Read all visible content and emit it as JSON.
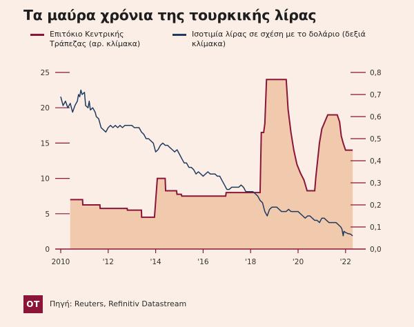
{
  "colors": {
    "background": "#faeee6",
    "rate": "#8a1538",
    "lira": "#1f3a5f",
    "fill": "#f1c9ad",
    "axis": "#8a1538"
  },
  "logo_text": "OT",
  "source": "Πηγή: Reuters, Refinitiv Datastream",
  "chart_data": {
    "type": "line",
    "title": "Τα μαύρα χρόνια της τουρκικής λίρας",
    "x_ticks": [
      "2010",
      "'12",
      "'14",
      "'16",
      "'18",
      "'20",
      "'22"
    ],
    "x_tick_years": [
      2010,
      2012,
      2014,
      2016,
      2018,
      2020,
      2022
    ],
    "x_range": [
      2010,
      2022.5
    ],
    "y_left": {
      "ticks": [
        "0",
        "5",
        "10",
        "15",
        "20",
        "25"
      ],
      "range": [
        0,
        25
      ]
    },
    "y_right": {
      "ticks": [
        "0,0",
        "0,1",
        "0,2",
        "0,3",
        "0,4",
        "0,5",
        "0,6",
        "0,7",
        "0,8"
      ],
      "range": [
        0,
        0.8
      ]
    },
    "series": [
      {
        "name": "Επιτόκιο Κεντρικής Τράπεζας (αρ. κλίμακα)",
        "axis": "left",
        "step": true,
        "filled": true,
        "points": [
          [
            2010.4,
            7.0
          ],
          [
            2010.92,
            7.0
          ],
          [
            2010.93,
            6.25
          ],
          [
            2011.65,
            6.25
          ],
          [
            2011.66,
            5.75
          ],
          [
            2012.8,
            5.75
          ],
          [
            2012.81,
            5.5
          ],
          [
            2013.4,
            5.5
          ],
          [
            2013.41,
            4.5
          ],
          [
            2013.95,
            4.5
          ],
          [
            2014.07,
            10.0
          ],
          [
            2014.4,
            10.0
          ],
          [
            2014.42,
            8.25
          ],
          [
            2014.88,
            8.25
          ],
          [
            2014.9,
            7.75
          ],
          [
            2015.08,
            7.75
          ],
          [
            2015.1,
            7.5
          ],
          [
            2016.95,
            7.5
          ],
          [
            2016.97,
            8.0
          ],
          [
            2018.4,
            8.0
          ],
          [
            2018.45,
            16.5
          ],
          [
            2018.55,
            16.5
          ],
          [
            2018.6,
            17.75
          ],
          [
            2018.67,
            24.0
          ],
          [
            2019.5,
            24.0
          ],
          [
            2019.58,
            19.75
          ],
          [
            2019.7,
            16.5
          ],
          [
            2019.82,
            14.0
          ],
          [
            2019.95,
            12.0
          ],
          [
            2020.1,
            10.75
          ],
          [
            2020.25,
            9.75
          ],
          [
            2020.38,
            8.25
          ],
          [
            2020.7,
            8.25
          ],
          [
            2020.75,
            10.25
          ],
          [
            2020.9,
            15.0
          ],
          [
            2021.0,
            17.0
          ],
          [
            2021.25,
            19.0
          ],
          [
            2021.65,
            19.0
          ],
          [
            2021.75,
            18.0
          ],
          [
            2021.82,
            16.0
          ],
          [
            2021.9,
            15.0
          ],
          [
            2022.0,
            14.0
          ],
          [
            2022.3,
            14.0
          ]
        ]
      },
      {
        "name": "Ισοτιμία λίρας σε σχέση με το δολάριο (δεξιά κλίμακα)",
        "axis": "right",
        "step": false,
        "filled": false,
        "points": [
          [
            2010.0,
            0.69
          ],
          [
            2010.1,
            0.65
          ],
          [
            2010.2,
            0.67
          ],
          [
            2010.3,
            0.64
          ],
          [
            2010.4,
            0.66
          ],
          [
            2010.5,
            0.62
          ],
          [
            2010.6,
            0.65
          ],
          [
            2010.7,
            0.67
          ],
          [
            2010.75,
            0.7
          ],
          [
            2010.8,
            0.69
          ],
          [
            2010.85,
            0.72
          ],
          [
            2010.9,
            0.7
          ],
          [
            2011.0,
            0.71
          ],
          [
            2011.05,
            0.65
          ],
          [
            2011.15,
            0.64
          ],
          [
            2011.2,
            0.67
          ],
          [
            2011.25,
            0.63
          ],
          [
            2011.35,
            0.64
          ],
          [
            2011.45,
            0.62
          ],
          [
            2011.5,
            0.6
          ],
          [
            2011.6,
            0.59
          ],
          [
            2011.7,
            0.55
          ],
          [
            2011.8,
            0.54
          ],
          [
            2011.9,
            0.53
          ],
          [
            2012.0,
            0.55
          ],
          [
            2012.1,
            0.56
          ],
          [
            2012.2,
            0.55
          ],
          [
            2012.3,
            0.56
          ],
          [
            2012.4,
            0.55
          ],
          [
            2012.5,
            0.56
          ],
          [
            2012.6,
            0.55
          ],
          [
            2012.7,
            0.56
          ],
          [
            2012.8,
            0.56
          ],
          [
            2012.9,
            0.56
          ],
          [
            2013.0,
            0.56
          ],
          [
            2013.1,
            0.55
          ],
          [
            2013.2,
            0.55
          ],
          [
            2013.3,
            0.55
          ],
          [
            2013.4,
            0.53
          ],
          [
            2013.5,
            0.52
          ],
          [
            2013.6,
            0.5
          ],
          [
            2013.7,
            0.5
          ],
          [
            2013.8,
            0.49
          ],
          [
            2013.9,
            0.48
          ],
          [
            2014.0,
            0.44
          ],
          [
            2014.1,
            0.45
          ],
          [
            2014.2,
            0.47
          ],
          [
            2014.3,
            0.48
          ],
          [
            2014.4,
            0.47
          ],
          [
            2014.5,
            0.47
          ],
          [
            2014.6,
            0.46
          ],
          [
            2014.7,
            0.45
          ],
          [
            2014.8,
            0.44
          ],
          [
            2014.9,
            0.45
          ],
          [
            2015.0,
            0.43
          ],
          [
            2015.1,
            0.41
          ],
          [
            2015.2,
            0.39
          ],
          [
            2015.3,
            0.39
          ],
          [
            2015.4,
            0.37
          ],
          [
            2015.5,
            0.37
          ],
          [
            2015.6,
            0.36
          ],
          [
            2015.7,
            0.34
          ],
          [
            2015.8,
            0.35
          ],
          [
            2015.9,
            0.34
          ],
          [
            2016.0,
            0.33
          ],
          [
            2016.1,
            0.34
          ],
          [
            2016.2,
            0.35
          ],
          [
            2016.3,
            0.34
          ],
          [
            2016.4,
            0.34
          ],
          [
            2016.5,
            0.34
          ],
          [
            2016.6,
            0.33
          ],
          [
            2016.7,
            0.33
          ],
          [
            2016.8,
            0.31
          ],
          [
            2016.9,
            0.29
          ],
          [
            2017.0,
            0.27
          ],
          [
            2017.1,
            0.27
          ],
          [
            2017.2,
            0.28
          ],
          [
            2017.3,
            0.28
          ],
          [
            2017.4,
            0.28
          ],
          [
            2017.5,
            0.28
          ],
          [
            2017.6,
            0.29
          ],
          [
            2017.7,
            0.28
          ],
          [
            2017.8,
            0.26
          ],
          [
            2017.9,
            0.26
          ],
          [
            2018.0,
            0.26
          ],
          [
            2018.1,
            0.26
          ],
          [
            2018.2,
            0.25
          ],
          [
            2018.3,
            0.24
          ],
          [
            2018.4,
            0.22
          ],
          [
            2018.5,
            0.21
          ],
          [
            2018.6,
            0.17
          ],
          [
            2018.7,
            0.15
          ],
          [
            2018.8,
            0.18
          ],
          [
            2018.9,
            0.19
          ],
          [
            2019.0,
            0.19
          ],
          [
            2019.1,
            0.19
          ],
          [
            2019.2,
            0.18
          ],
          [
            2019.3,
            0.17
          ],
          [
            2019.4,
            0.17
          ],
          [
            2019.5,
            0.17
          ],
          [
            2019.6,
            0.18
          ],
          [
            2019.7,
            0.17
          ],
          [
            2019.8,
            0.17
          ],
          [
            2019.9,
            0.17
          ],
          [
            2020.0,
            0.17
          ],
          [
            2020.1,
            0.16
          ],
          [
            2020.2,
            0.15
          ],
          [
            2020.3,
            0.14
          ],
          [
            2020.4,
            0.15
          ],
          [
            2020.5,
            0.15
          ],
          [
            2020.6,
            0.14
          ],
          [
            2020.7,
            0.13
          ],
          [
            2020.8,
            0.13
          ],
          [
            2020.9,
            0.12
          ],
          [
            2021.0,
            0.14
          ],
          [
            2021.1,
            0.14
          ],
          [
            2021.2,
            0.13
          ],
          [
            2021.3,
            0.12
          ],
          [
            2021.4,
            0.12
          ],
          [
            2021.5,
            0.12
          ],
          [
            2021.6,
            0.12
          ],
          [
            2021.7,
            0.11
          ],
          [
            2021.8,
            0.1
          ],
          [
            2021.85,
            0.09
          ],
          [
            2021.9,
            0.06
          ],
          [
            2021.93,
            0.08
          ],
          [
            2022.0,
            0.075
          ],
          [
            2022.1,
            0.07
          ],
          [
            2022.2,
            0.068
          ],
          [
            2022.3,
            0.06
          ]
        ]
      }
    ]
  }
}
